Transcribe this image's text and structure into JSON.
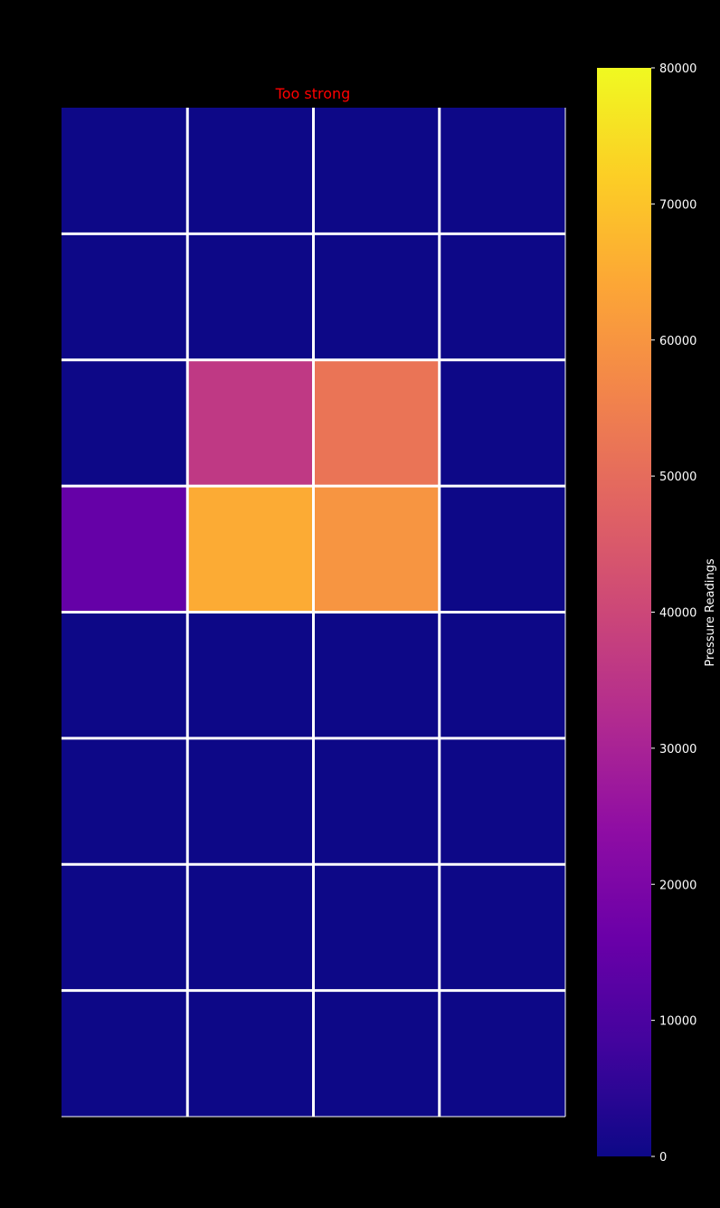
{
  "chart_data": {
    "type": "heatmap",
    "title": "Too strong",
    "title_color": "#ff0000",
    "background": "#000000",
    "grid_line_color": "#ffffff",
    "colormap": "plasma",
    "rows": 8,
    "cols": 4,
    "values": [
      [
        0,
        0,
        0,
        0
      ],
      [
        0,
        0,
        0,
        0
      ],
      [
        0,
        36000,
        52000,
        0
      ],
      [
        15000,
        65000,
        60000,
        0
      ],
      [
        0,
        0,
        0,
        0
      ],
      [
        0,
        0,
        0,
        0
      ],
      [
        0,
        0,
        0,
        0
      ],
      [
        0,
        0,
        0,
        0
      ]
    ],
    "colorbar": {
      "label": "Pressure Readings",
      "vmin": 0,
      "vmax": 80000,
      "ticks": [
        0,
        10000,
        20000,
        30000,
        40000,
        50000,
        60000,
        70000,
        80000
      ],
      "tick_labels": [
        "0",
        "10000",
        "20000",
        "30000",
        "40000",
        "50000",
        "60000",
        "70000",
        "80000"
      ]
    }
  }
}
